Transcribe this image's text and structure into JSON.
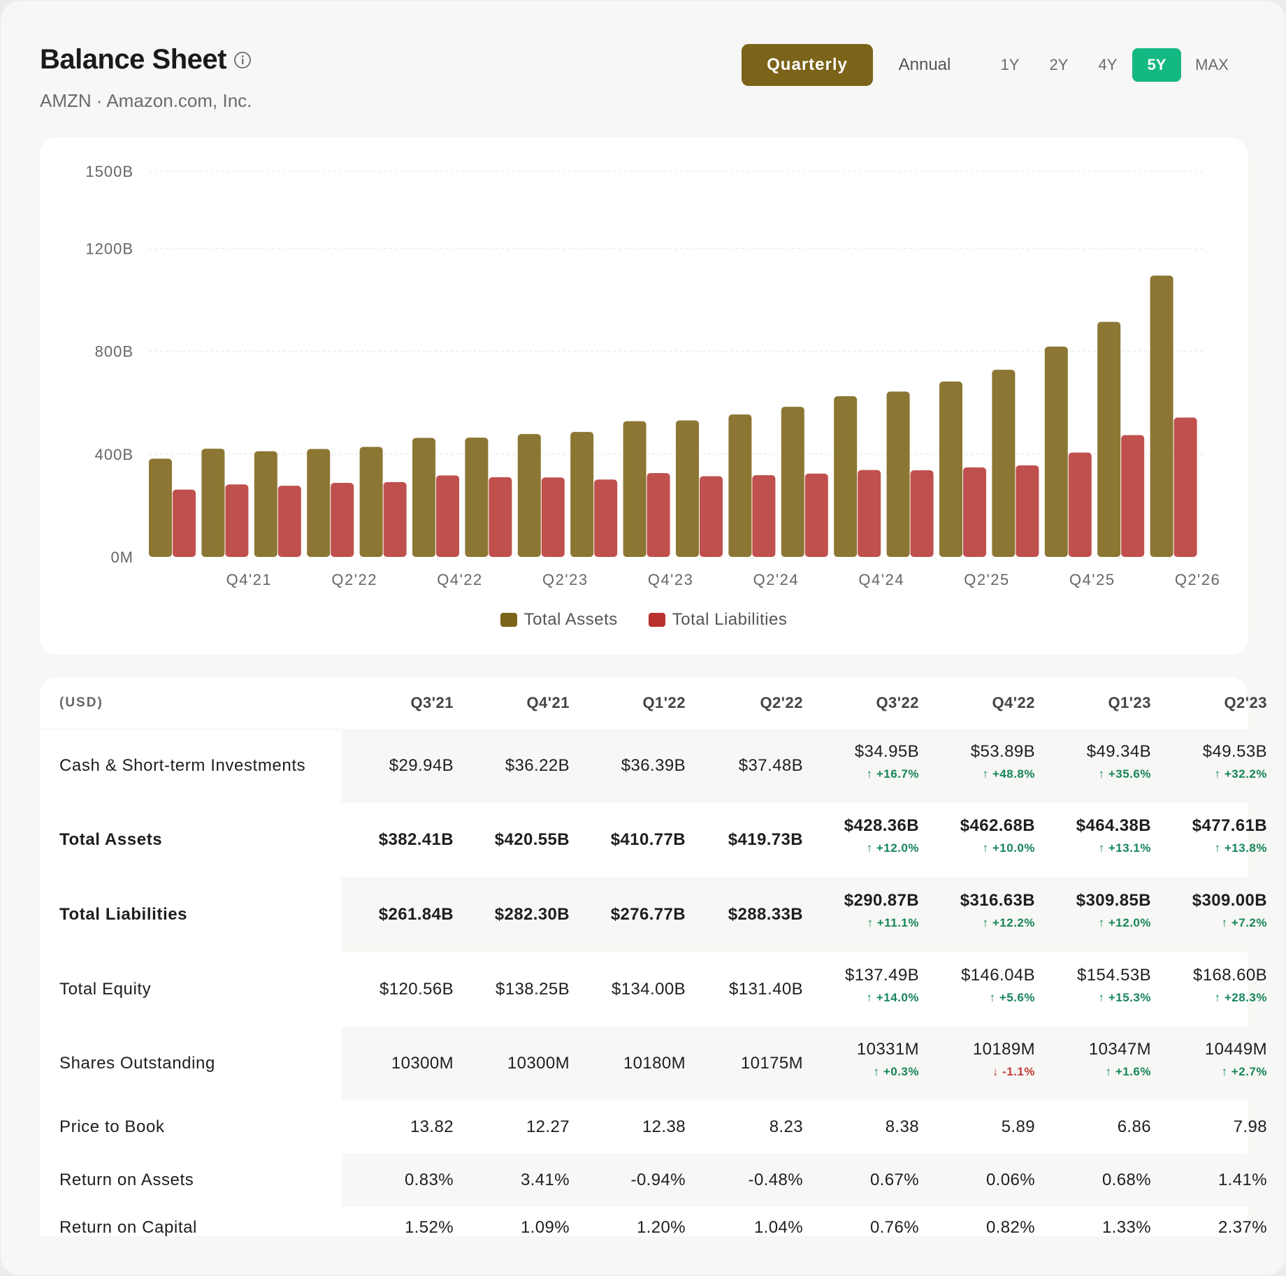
{
  "header": {
    "title": "Balance Sheet",
    "subtitle": "AMZN · Amazon.com, Inc.",
    "period_options": [
      "Quarterly",
      "Annual"
    ],
    "period_selected": "Quarterly",
    "range_options": [
      "1Y",
      "2Y",
      "4Y",
      "5Y",
      "MAX"
    ],
    "range_selected": "5Y"
  },
  "colors": {
    "assets": "#8c7633",
    "liabilities": "#c0504d",
    "accent": "#7b6319",
    "range_active": "#14b883",
    "up": "#17855a",
    "down": "#c23a35"
  },
  "chart_data": {
    "type": "bar",
    "title": "",
    "xlabel": "",
    "ylabel": "",
    "ylim": [
      0,
      1500
    ],
    "y_ticks": [
      "0M",
      "400B",
      "800B",
      "1200B",
      "1500B"
    ],
    "y_tick_values": [
      0,
      400,
      800,
      1200,
      1500
    ],
    "categories": [
      "Q3'21",
      "Q4'21",
      "Q1'22",
      "Q2'22",
      "Q3'22",
      "Q4'22",
      "Q1'23",
      "Q2'23",
      "Q3'23",
      "Q4'23",
      "Q1'24",
      "Q2'24",
      "Q3'24",
      "Q4'24",
      "Q1'25",
      "Q2'25",
      "Q3'25",
      "Q4'25",
      "Q1'26",
      "Q2'26"
    ],
    "x_tick_labels": [
      "Q4'21",
      "Q2'22",
      "Q4'22",
      "Q2'23",
      "Q4'23",
      "Q2'24",
      "Q4'24",
      "Q2'25",
      "Q4'25",
      "Q2'26"
    ],
    "series": [
      {
        "name": "Total Assets",
        "values": [
          382,
          421,
          411,
          420,
          428,
          463,
          464,
          478,
          486,
          528,
          531,
          554,
          584,
          625,
          643,
          682,
          728,
          818,
          914,
          1094
        ]
      },
      {
        "name": "Total Liabilities",
        "values": [
          262,
          282,
          277,
          288,
          291,
          317,
          310,
          309,
          301,
          326,
          314,
          318,
          324,
          338,
          337,
          348,
          356,
          406,
          474,
          542
        ]
      }
    ],
    "grid": true,
    "legend": "bottom-center"
  },
  "table": {
    "label_header": "(USD)",
    "columns": [
      "Q3'21",
      "Q4'21",
      "Q1'22",
      "Q2'22",
      "Q3'22",
      "Q4'22",
      "Q1'23",
      "Q2'23"
    ],
    "rows": [
      {
        "label": "Cash & Short-term Investments",
        "bold": false,
        "values": [
          "$29.94B",
          "$36.22B",
          "$36.39B",
          "$37.48B",
          "$34.95B",
          "$53.89B",
          "$49.34B",
          "$49.53B"
        ],
        "changes": [
          "",
          "",
          "",
          "",
          "↑ +16.7%",
          "↑ +48.8%",
          "↑ +35.6%",
          "↑ +32.2%"
        ]
      },
      {
        "label": "Total Assets",
        "bold": true,
        "values": [
          "$382.41B",
          "$420.55B",
          "$410.77B",
          "$419.73B",
          "$428.36B",
          "$462.68B",
          "$464.38B",
          "$477.61B"
        ],
        "changes": [
          "",
          "",
          "",
          "",
          "↑ +12.0%",
          "↑ +10.0%",
          "↑ +13.1%",
          "↑ +13.8%"
        ]
      },
      {
        "label": "Total Liabilities",
        "bold": true,
        "values": [
          "$261.84B",
          "$282.30B",
          "$276.77B",
          "$288.33B",
          "$290.87B",
          "$316.63B",
          "$309.85B",
          "$309.00B"
        ],
        "changes": [
          "",
          "",
          "",
          "",
          "↑ +11.1%",
          "↑ +12.2%",
          "↑ +12.0%",
          "↑ +7.2%"
        ]
      },
      {
        "label": "Total Equity",
        "bold": false,
        "values": [
          "$120.56B",
          "$138.25B",
          "$134.00B",
          "$131.40B",
          "$137.49B",
          "$146.04B",
          "$154.53B",
          "$168.60B"
        ],
        "changes": [
          "",
          "",
          "",
          "",
          "↑ +14.0%",
          "↑ +5.6%",
          "↑ +15.3%",
          "↑ +28.3%"
        ]
      },
      {
        "label": "Shares Outstanding",
        "bold": false,
        "values": [
          "10300M",
          "10300M",
          "10180M",
          "10175M",
          "10331M",
          "10189M",
          "10347M",
          "10449M"
        ],
        "changes": [
          "",
          "",
          "",
          "",
          "↑ +0.3%",
          "↓ -1.1%",
          "↑ +1.6%",
          "↑ +2.7%"
        ]
      },
      {
        "label": "Price to Book",
        "bold": false,
        "values": [
          "13.82",
          "12.27",
          "12.38",
          "8.23",
          "8.38",
          "5.89",
          "6.86",
          "7.98"
        ],
        "changes": [
          "",
          "",
          "",
          "",
          "",
          "",
          "",
          ""
        ]
      },
      {
        "label": "Return on Assets",
        "bold": false,
        "values": [
          "0.83%",
          "3.41%",
          "-0.94%",
          "-0.48%",
          "0.67%",
          "0.06%",
          "0.68%",
          "1.41%"
        ],
        "changes": [
          "",
          "",
          "",
          "",
          "",
          "",
          "",
          ""
        ]
      },
      {
        "label": "Return on Capital",
        "bold": false,
        "values": [
          "1.52%",
          "1.09%",
          "1.20%",
          "1.04%",
          "0.76%",
          "0.82%",
          "1.33%",
          "2.37%"
        ],
        "changes": [
          "",
          "",
          "",
          "",
          "",
          "",
          "",
          ""
        ]
      }
    ]
  }
}
